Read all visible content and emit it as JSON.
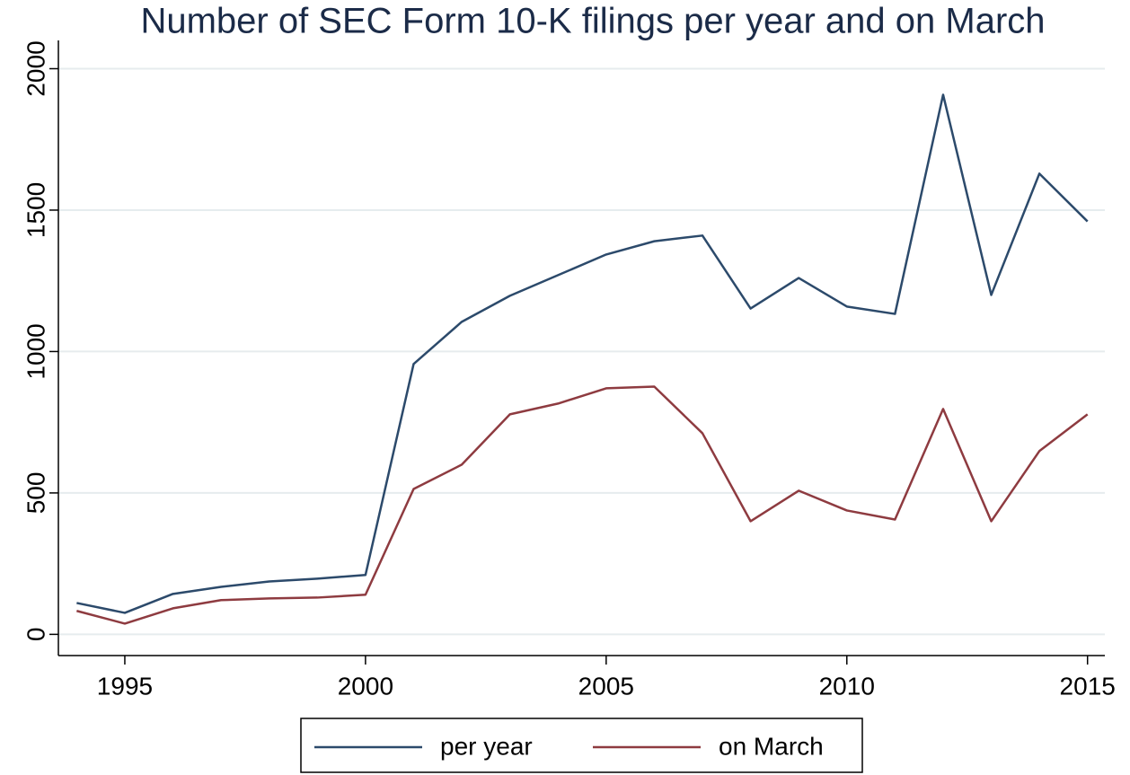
{
  "chart_data": {
    "type": "line",
    "title": "Number of SEC Form 10-K filings per year and on March",
    "x": [
      1994,
      1995,
      1996,
      1997,
      1998,
      1999,
      2000,
      2001,
      2002,
      2003,
      2004,
      2005,
      2006,
      2007,
      2008,
      2009,
      2010,
      2011,
      2012,
      2013,
      2014,
      2015
    ],
    "series": [
      {
        "name": "per year",
        "color": "#2c4a6b",
        "values": [
          111,
          76,
          143,
          168,
          187,
          197,
          210,
          956,
          1105,
          1197,
          1270,
          1343,
          1390,
          1410,
          1152,
          1260,
          1159,
          1133,
          1908,
          1200,
          1629,
          1460
        ]
      },
      {
        "name": "on March",
        "color": "#8e3b40",
        "values": [
          83,
          38,
          92,
          121,
          127,
          130,
          140,
          514,
          600,
          778,
          816,
          870,
          876,
          711,
          400,
          508,
          438,
          406,
          797,
          400,
          648,
          778
        ]
      }
    ],
    "xlim": [
      1993.62,
      2015.36
    ],
    "xticks": [
      1995,
      2000,
      2005,
      2010,
      2015
    ],
    "ylim": [
      -75,
      2100
    ],
    "yticks": [
      0,
      500,
      1000,
      1500,
      2000
    ],
    "grid": true,
    "legend": "bottom"
  }
}
